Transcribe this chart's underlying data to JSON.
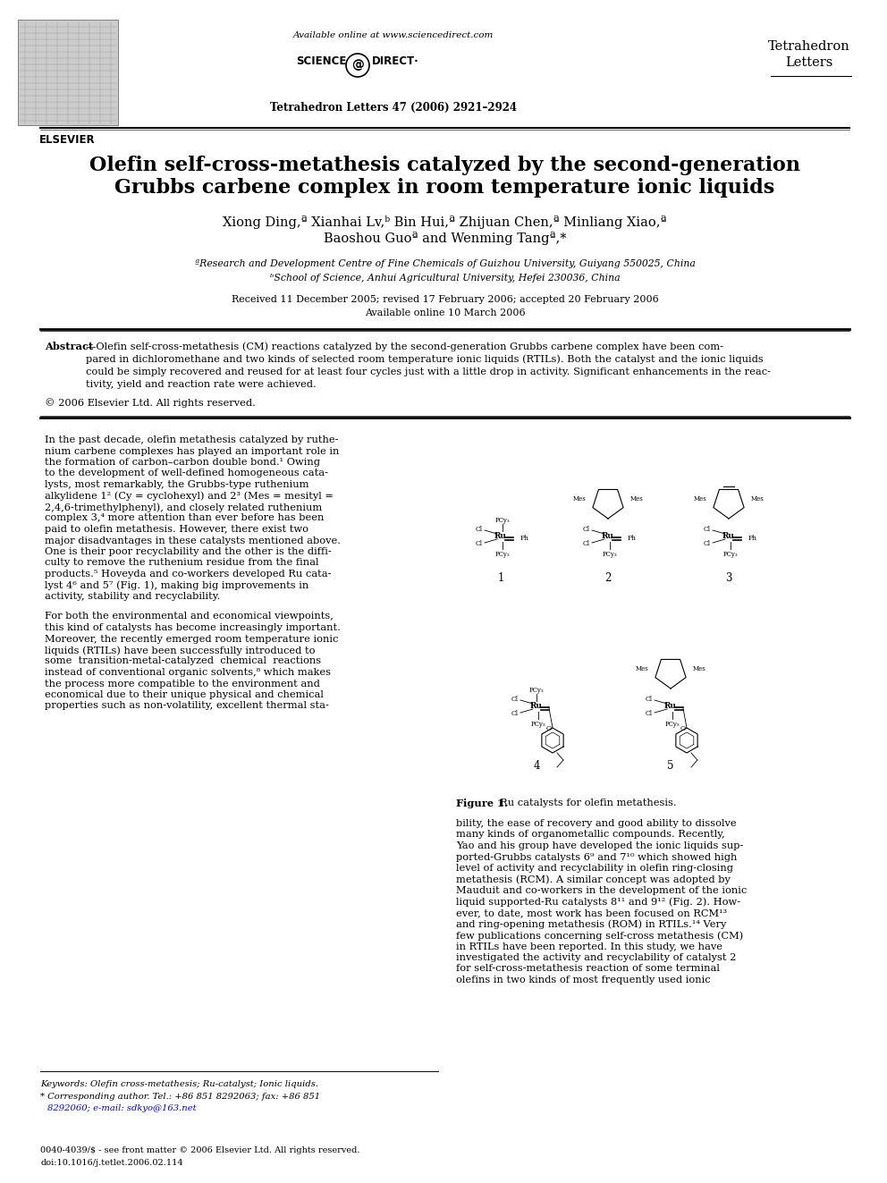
{
  "bg_color": "#ffffff",
  "title_line1": "Olefin self-cross-metathesis catalyzed by the second-generation",
  "title_line2": "Grubbs carbene complex in room temperature ionic liquids",
  "authors_line1": "Xiong Ding,ª Xianhai Lv,ᵇ Bin Hui,ª Zhijuan Chen,ª Minliang Xiao,ª",
  "authors_line2": "Baoshou Guoª and Wenming Tangª,*",
  "affil1": "ªResearch and Development Centre of Fine Chemicals of Guizhou University, Guiyang 550025, China",
  "affil2": "ᵇSchool of Science, Anhui Agricultural University, Hefei 230036, China",
  "dates_line1": "Received 11 December 2005; revised 17 February 2006; accepted 20 February 2006",
  "dates_line2": "Available online 10 March 2006",
  "journal_name_1": "Tetrahedron",
  "journal_name_2": "Letters",
  "journal_citation": "Tetrahedron Letters 47 (2006) 2921–2924",
  "available_online": "Available online at www.sciencedirect.com",
  "elsevier": "ELSEVIER",
  "abstract_body": "—Olefin self-cross-metathesis (CM) reactions catalyzed by the second-generation Grubbs carbene complex have been com-\npared in dichloromethane and two kinds of selected room temperature ionic liquids (RTILs). Both the catalyst and the ionic liquids\ncould be simply recovered and reused for at least four cycles just with a little drop in activity. Significant enhancements in the reac-\ntivity, yield and reaction rate were achieved.",
  "copyright_text": "© 2006 Elsevier Ltd. All rights reserved.",
  "keywords_line": "Keywords: Olefin cross-metathesis; Ru-catalyst; Ionic liquids.",
  "corresponding_line1": "* Corresponding author. Tel.: +86 851 8292063; fax: +86 851",
  "corresponding_line2": "8292060; e-mail: sdkyo@163.net",
  "footer_line1": "0040-4039/$ - see front matter © 2006 Elsevier Ltd. All rights reserved.",
  "footer_line2": "doi:10.1016/j.tetlet.2006.02.114",
  "body_left_para1": "In the past decade, olefin metathesis catalyzed by ruthe-\nnium carbene complexes has played an important role in\nthe formation of carbon–carbon double bond.¹ Owing\nto the development of well-defined homogeneous cata-\nlysts, most remarkably, the Grubbs-type ruthenium\nalkylidene 1² (Cy = cyclohexyl) and 2³ (Mes = mesityl =\n2,4,6-trimethylphenyl), and closely related ruthenium\ncomplex 3,⁴ more attention than ever before has been\npaid to olefin metathesis. However, there exist two\nmajor disadvantages in these catalysts mentioned above.\nOne is their poor recyclability and the other is the diffi-\nculty to remove the ruthenium residue from the final\nproducts.⁵ Hoveyda and co-workers developed Ru cata-\nlyst 4⁶ and 5⁷ (Fig. 1), making big improvements in\nactivity, stability and recyclability.",
  "body_left_para2": "For both the environmental and economical viewpoints,\nthis kind of catalysts has become increasingly important.\nMoreover, the recently emerged room temperature ionic\nliquids (RTILs) have been successfully introduced to\nsome  transition-metal-catalyzed  chemical  reactions\ninstead of conventional organic solvents,⁸ which makes\nthe process more compatible to the environment and\neconomical due to their unique physical and chemical\nproperties such as non-volatility, excellent thermal sta-",
  "body_right": "bility, the ease of recovery and good ability to dissolve\nmany kinds of organometallic compounds. Recently,\nYao and his group have developed the ionic liquids sup-\nported-Grubbs catalysts 6⁹ and 7¹⁰ which showed high\nlevel of activity and recyclability in olefin ring-closing\nmetathesis (RCM). A similar concept was adopted by\nMauduit and co-workers in the development of the ionic\nliquid supported-Ru catalysts 8¹¹ and 9¹² (Fig. 2). How-\never, to date, most work has been focused on RCM¹³\nand ring-opening metathesis (ROM) in RTILs.¹⁴ Very\nfew publications concerning self-cross metathesis (CM)\nin RTILs have been reported. In this study, we have\ninvestigated the activity and recyclability of catalyst 2\nfor self-cross-metathesis reaction of some terminal\nolefins in two kinds of most frequently used ionic",
  "figure1_caption_bold": "Figure 1.",
  "figure1_caption_rest": "  Ru catalysts for olefin metathesis."
}
